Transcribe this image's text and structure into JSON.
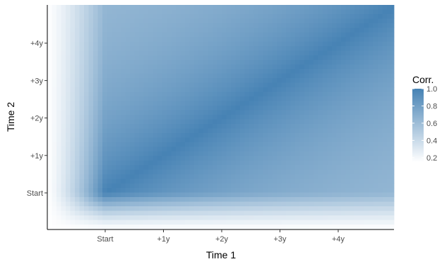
{
  "chart_data": {
    "type": "heatmap",
    "title": "",
    "xlabel": "Time 1",
    "ylabel": "Time 2",
    "x_ticks": [
      "Start",
      "+1y",
      "+2y",
      "+3y",
      "+4y"
    ],
    "y_ticks": [
      "Start",
      "+1y",
      "+2y",
      "+3y",
      "+4y"
    ],
    "legend": {
      "title": "Corr.",
      "labels": [
        "1.0",
        "0.8",
        "0.6",
        "0.4",
        "0.2"
      ],
      "values": [
        1.0,
        0.8,
        0.6,
        0.4,
        0.2
      ],
      "min": 0.15,
      "max": 1.0,
      "placement": "right"
    },
    "colors": {
      "low": "#ffffff",
      "high": "#4682b4"
    },
    "grid": false
  }
}
